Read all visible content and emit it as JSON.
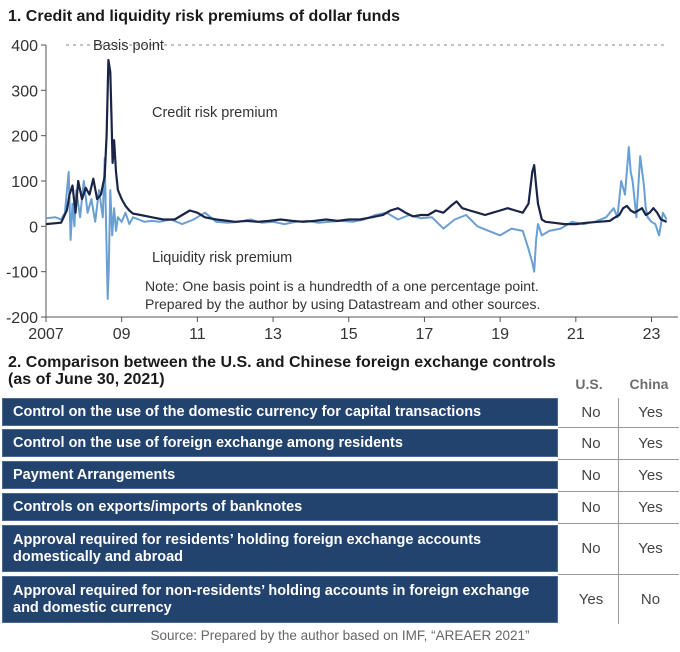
{
  "section1": {
    "title": "1. Credit and liquidity risk premiums of dollar funds"
  },
  "chart_data": {
    "type": "line",
    "title": "1. Credit and liquidity risk premiums of dollar funds",
    "ylabel": "Basis point",
    "ylim": [
      -200,
      400
    ],
    "yticks": [
      400,
      300,
      200,
      100,
      0,
      -100,
      -200
    ],
    "xlim": [
      2007.0,
      2023.7
    ],
    "xticks": [
      {
        "label": "2007",
        "value": 2007
      },
      {
        "label": "09",
        "value": 2009
      },
      {
        "label": "11",
        "value": 2011
      },
      {
        "label": "13",
        "value": 2013
      },
      {
        "label": "15",
        "value": 2015
      },
      {
        "label": "17",
        "value": 2017
      },
      {
        "label": "19",
        "value": 2019
      },
      {
        "label": "21",
        "value": 2021
      },
      {
        "label": "23",
        "value": 2023
      }
    ],
    "grid": "dashed horizontal at 400",
    "series": [
      {
        "name": "Credit risk premium",
        "color": "#1a2447",
        "x": [
          2007.0,
          2007.4,
          2007.55,
          2007.62,
          2007.7,
          2007.78,
          2007.85,
          2007.95,
          2008.05,
          2008.15,
          2008.25,
          2008.35,
          2008.45,
          2008.55,
          2008.6,
          2008.65,
          2008.7,
          2008.73,
          2008.76,
          2008.8,
          2008.85,
          2008.9,
          2009.0,
          2009.1,
          2009.2,
          2009.3,
          2009.5,
          2009.8,
          2010.1,
          2010.4,
          2010.6,
          2010.8,
          2011.0,
          2011.2,
          2011.5,
          2011.8,
          2012.0,
          2012.3,
          2012.6,
          2012.9,
          2013.2,
          2013.5,
          2013.8,
          2014.1,
          2014.4,
          2014.7,
          2015.0,
          2015.3,
          2015.6,
          2015.9,
          2016.1,
          2016.3,
          2016.5,
          2016.7,
          2016.9,
          2017.1,
          2017.3,
          2017.5,
          2017.7,
          2017.85,
          2018.0,
          2018.2,
          2018.4,
          2018.6,
          2018.8,
          2019.0,
          2019.2,
          2019.4,
          2019.6,
          2019.75,
          2019.85,
          2019.9,
          2019.95,
          2020.0,
          2020.1,
          2020.2,
          2020.4,
          2020.7,
          2021.0,
          2021.3,
          2021.6,
          2021.9,
          2022.0,
          2022.15,
          2022.25,
          2022.35,
          2022.45,
          2022.55,
          2022.65,
          2022.75,
          2022.85,
          2022.95,
          2023.05,
          2023.15,
          2023.25,
          2023.4
        ],
        "values": [
          5,
          8,
          35,
          70,
          90,
          30,
          100,
          60,
          85,
          70,
          105,
          60,
          70,
          110,
          200,
          367,
          340,
          240,
          140,
          190,
          120,
          80,
          60,
          45,
          35,
          28,
          25,
          20,
          15,
          15,
          25,
          35,
          30,
          20,
          15,
          12,
          10,
          12,
          10,
          12,
          15,
          12,
          10,
          12,
          15,
          12,
          15,
          15,
          20,
          25,
          35,
          40,
          30,
          22,
          25,
          25,
          35,
          30,
          45,
          55,
          40,
          35,
          30,
          25,
          30,
          35,
          40,
          35,
          30,
          50,
          120,
          135,
          90,
          50,
          15,
          10,
          8,
          5,
          5,
          8,
          10,
          12,
          18,
          25,
          40,
          45,
          35,
          30,
          35,
          40,
          25,
          30,
          40,
          30,
          15,
          10
        ]
      },
      {
        "name": "Liquidity risk premium",
        "color": "#6a9fd3",
        "x": [
          2007.0,
          2007.25,
          2007.4,
          2007.5,
          2007.6,
          2007.65,
          2007.7,
          2007.75,
          2007.8,
          2007.9,
          2008.0,
          2008.1,
          2008.2,
          2008.3,
          2008.4,
          2008.5,
          2008.55,
          2008.6,
          2008.63,
          2008.66,
          2008.7,
          2008.75,
          2008.8,
          2008.85,
          2008.9,
          2009.0,
          2009.1,
          2009.2,
          2009.3,
          2009.45,
          2009.6,
          2009.8,
          2010.0,
          2010.3,
          2010.6,
          2010.9,
          2011.2,
          2011.5,
          2011.8,
          2012.1,
          2012.4,
          2012.7,
          2013.0,
          2013.3,
          2013.6,
          2013.9,
          2014.2,
          2014.5,
          2014.8,
          2015.1,
          2015.4,
          2015.7,
          2016.0,
          2016.3,
          2016.6,
          2016.9,
          2017.2,
          2017.5,
          2017.8,
          2018.1,
          2018.4,
          2018.7,
          2019.0,
          2019.3,
          2019.6,
          2019.75,
          2019.85,
          2019.9,
          2019.95,
          2020.0,
          2020.1,
          2020.3,
          2020.6,
          2020.9,
          2021.2,
          2021.5,
          2021.8,
          2022.0,
          2022.1,
          2022.2,
          2022.3,
          2022.4,
          2022.45,
          2022.5,
          2022.55,
          2022.6,
          2022.7,
          2022.8,
          2022.85,
          2022.9,
          2023.0,
          2023.1,
          2023.2,
          2023.3,
          2023.4
        ],
        "values": [
          18,
          20,
          15,
          30,
          120,
          -30,
          50,
          0,
          80,
          20,
          100,
          30,
          60,
          10,
          80,
          20,
          150,
          -50,
          -160,
          -90,
          80,
          -20,
          40,
          -10,
          20,
          10,
          30,
          5,
          20,
          15,
          10,
          12,
          10,
          15,
          5,
          15,
          30,
          10,
          8,
          10,
          15,
          8,
          10,
          5,
          10,
          12,
          8,
          10,
          12,
          10,
          15,
          25,
          30,
          15,
          25,
          18,
          20,
          -5,
          15,
          25,
          0,
          -10,
          -20,
          -5,
          -10,
          -50,
          -80,
          -100,
          -30,
          5,
          -20,
          -10,
          -5,
          10,
          5,
          10,
          20,
          40,
          20,
          100,
          70,
          175,
          120,
          100,
          60,
          20,
          155,
          90,
          40,
          20,
          10,
          5,
          -20,
          30,
          15
        ]
      }
    ],
    "annotations": [
      "Basis point",
      "Credit risk premium",
      "Liquidity risk premium",
      "Note: One basis point is a hundredth of a one percentage point.",
      "Prepared by the author by using Datastream and other sources."
    ]
  },
  "section2": {
    "title": "2. Comparison between the U.S. and Chinese foreign exchange controls (as of June 30, 2021)",
    "col_us": "U.S.",
    "col_china": "China",
    "rows": [
      {
        "label": "Control on the use of the domestic currency for capital transactions",
        "us": "No",
        "china": "Yes"
      },
      {
        "label": "Control on the use of foreign exchange among residents",
        "us": "No",
        "china": "Yes"
      },
      {
        "label": "Payment Arrangements",
        "us": "No",
        "china": "Yes"
      },
      {
        "label": "Controls on exports/imports of banknotes",
        "us": "No",
        "china": "Yes"
      },
      {
        "label": "Approval required for residents’ holding foreign exchange accounts domestically and abroad",
        "us": "No",
        "china": "Yes"
      },
      {
        "label": "Approval required for non-residents’ holding accounts in foreign exchange and domestic currency",
        "us": "Yes",
        "china": "No"
      }
    ]
  },
  "source": "Source: Prepared by the author based on IMF, “AREAER 2021”"
}
